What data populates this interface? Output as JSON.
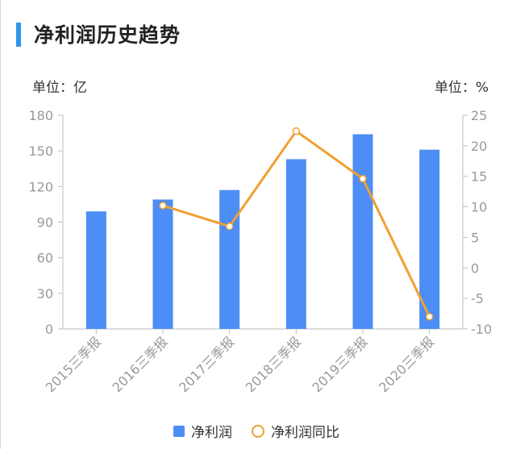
{
  "header": {
    "title": "净利润历史趋势",
    "unit_left": "单位：亿",
    "unit_right": "单位：%"
  },
  "colors": {
    "accent": "#2f96e8",
    "bar": "#4d8df6",
    "line": "#f0a030",
    "axis": "#bdbdbd",
    "tick_text": "#999999"
  },
  "chart_data": {
    "type": "bar",
    "categories": [
      "2015三季报",
      "2016三季报",
      "2017三季报",
      "2018三季报",
      "2019三季报",
      "2020三季报"
    ],
    "series": [
      {
        "name": "净利润",
        "type": "bar",
        "axis": "left",
        "values": [
          99,
          109,
          117,
          143,
          164,
          151
        ]
      },
      {
        "name": "净利润同比",
        "type": "line",
        "axis": "right",
        "values": [
          null,
          10.2,
          6.8,
          22.4,
          14.6,
          -8.0
        ]
      }
    ],
    "y_left": {
      "ylim": [
        0,
        180
      ],
      "ticks": [
        0,
        30,
        60,
        90,
        120,
        150,
        180
      ]
    },
    "y_right": {
      "ylim": [
        -10,
        25
      ],
      "ticks": [
        -10,
        -5,
        0,
        5,
        10,
        15,
        20,
        25
      ]
    },
    "legend": {
      "placement": "bottom",
      "entries": [
        "净利润",
        "净利润同比"
      ]
    }
  }
}
